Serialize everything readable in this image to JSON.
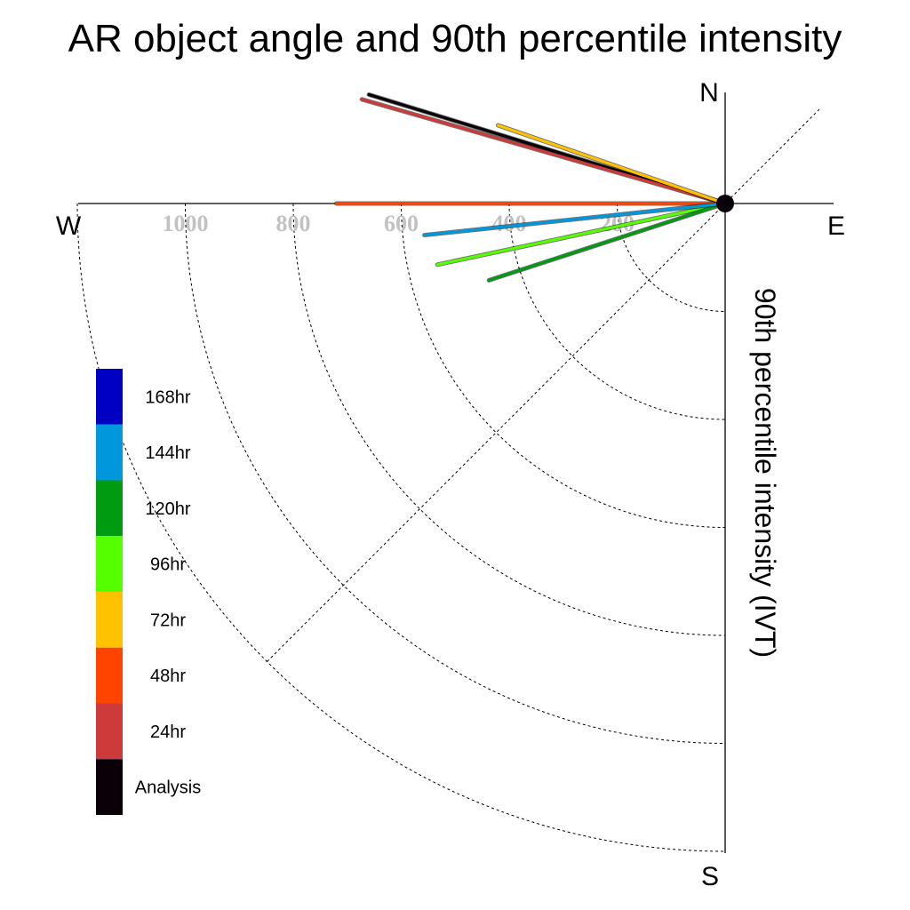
{
  "chart_data": {
    "type": "polar-vector",
    "title": "AR object angle and 90th percentile intensity",
    "ylabel": "90th percentile intensity (IVT)",
    "directions": {
      "north": "N",
      "east": "E",
      "south": "S",
      "west": "W"
    },
    "radial_ticks": [
      "200",
      "400",
      "600",
      "800",
      "1000"
    ],
    "rmax": 1200,
    "grid": true,
    "legend_position": "lower-left",
    "series": [
      {
        "name": "Analysis",
        "color": "#0a0008",
        "angle_deg": 163,
        "intensity": 690
      },
      {
        "name": "24hr",
        "color": "#cc3a3a",
        "angle_deg": 164,
        "intensity": 700
      },
      {
        "name": "48hr",
        "color": "#ff4400",
        "angle_deg": 180,
        "intensity": 720
      },
      {
        "name": "72hr",
        "color": "#ffc200",
        "angle_deg": 161,
        "intensity": 445
      },
      {
        "name": "96hr",
        "color": "#55ff00",
        "angle_deg": 192,
        "intensity": 545
      },
      {
        "name": "120hr",
        "color": "#009b10",
        "angle_deg": 198,
        "intensity": 460
      },
      {
        "name": "144hr",
        "color": "#0097dc",
        "angle_deg": 186,
        "intensity": 560
      },
      {
        "name": "168hr",
        "color": "#0000c4",
        "angle_deg": 180,
        "intensity": 0
      }
    ]
  }
}
